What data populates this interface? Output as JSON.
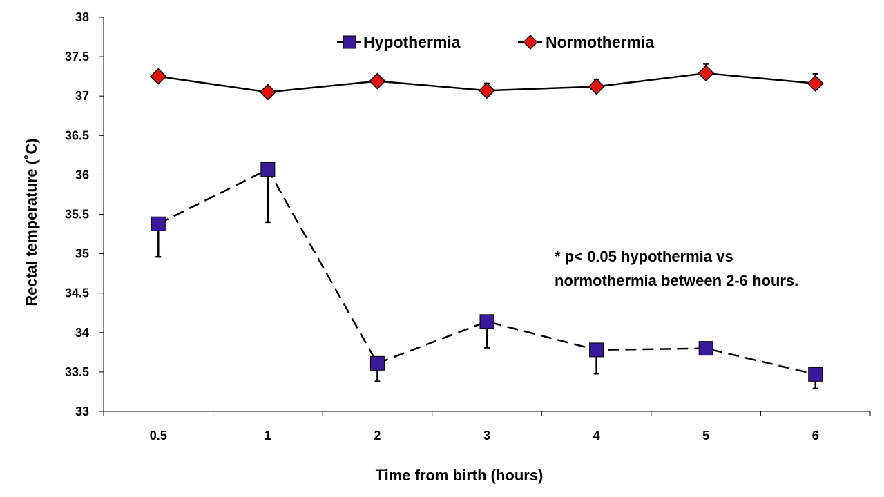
{
  "chart_data": {
    "type": "line",
    "xlabel": "Time from birth (hours)",
    "ylabel": "Rectal temperature (˚C)",
    "categories": [
      "0.5",
      "1",
      "2",
      "3",
      "4",
      "5",
      "6"
    ],
    "ylim": [
      33,
      38
    ],
    "yticks": [
      "33",
      "33.5",
      "34",
      "34.5",
      "35",
      "35.5",
      "36",
      "36.5",
      "37",
      "37.5",
      "38"
    ],
    "grid": false,
    "legend_position": "top-center",
    "series": [
      {
        "name": "Hypothermia",
        "values": [
          35.38,
          36.07,
          33.61,
          34.14,
          33.78,
          33.8,
          33.47
        ],
        "error_bars": [
          0.42,
          0.67,
          0.23,
          0.33,
          0.3,
          0.08,
          0.18
        ],
        "error_direction": "down",
        "marker": "square",
        "line_style": "dashed",
        "color": "#3a1a9a"
      },
      {
        "name": "Normothermia",
        "values": [
          37.25,
          37.05,
          37.19,
          37.07,
          37.12,
          37.29,
          37.16
        ],
        "error_bars": [
          0.0,
          0.0,
          0.0,
          0.09,
          0.09,
          0.12,
          0.12
        ],
        "error_direction": "up",
        "marker": "diamond",
        "line_style": "solid",
        "color": "#e8120c"
      }
    ],
    "annotation": [
      "* p< 0.05 hypothermia vs",
      "normothermia between 2-6 hours."
    ]
  }
}
